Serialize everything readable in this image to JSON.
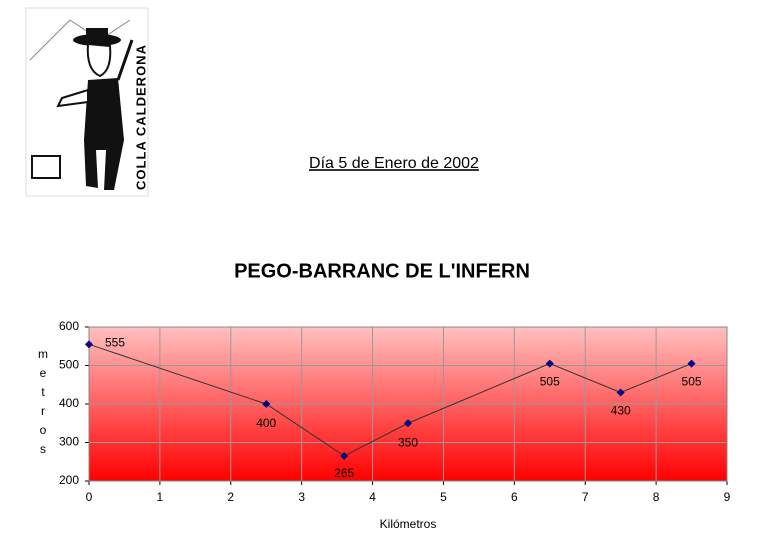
{
  "logo_text": "COLLA CALDERONA",
  "date": "Día 5 de Enero de 2002",
  "chart_data": {
    "type": "line",
    "title": "PEGO-BARRANC DE L'INFERN",
    "x_label": "Kilómetros",
    "y_label": "metros",
    "x": [
      0,
      2.5,
      3.6,
      4.5,
      6.5,
      7.5,
      8.5
    ],
    "values": [
      555,
      400,
      265,
      350,
      505,
      430,
      505
    ],
    "color": "#333333",
    "marker_color": "#000080",
    "xlim": [
      0,
      9
    ],
    "xticks": [
      0,
      1,
      2,
      3,
      4,
      5,
      6,
      7,
      8,
      9
    ],
    "ylim": [
      200,
      600
    ],
    "yticks": [
      200,
      300,
      400,
      500,
      600
    ],
    "grid": true
  }
}
